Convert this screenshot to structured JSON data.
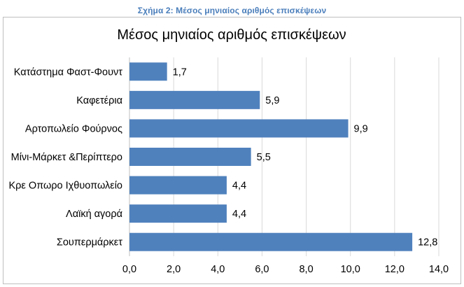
{
  "caption": "Σχήμα 2: Μέσος μηνιαίος αριθμός επισκέψεων",
  "colors": {
    "bar": "#4f81bd",
    "grid": "#d9d9d9",
    "caption": "#4a7ebb"
  },
  "chart_data": {
    "type": "bar",
    "orientation": "horizontal",
    "title": "Μέσος μηνιαίος αριθμός επισκέψεων",
    "xlabel": "",
    "ylabel": "",
    "categories": [
      "Κατάστημα Φαστ-Φουντ",
      "Καφετέρια",
      "Αρτοπωλείο Φούρνος",
      "Μίνι-Μάρκετ &Περίπτερο",
      "Κρε Οπωρο Ιχθυοπωλείο",
      "Λαϊκή αγορά",
      "Σουπερμάρκετ"
    ],
    "values": [
      1.7,
      5.9,
      9.9,
      5.5,
      4.4,
      4.4,
      12.8
    ],
    "data_labels": [
      "1,7",
      "5,9",
      "9,9",
      "5,5",
      "4,4",
      "4,4",
      "12,8"
    ],
    "xlim": [
      0,
      14
    ],
    "xticks": [
      0,
      2,
      4,
      6,
      8,
      10,
      12,
      14
    ],
    "xtick_labels": [
      "0,0",
      "2,0",
      "4,0",
      "6,0",
      "8,0",
      "10,0",
      "12,0",
      "14,0"
    ],
    "grid": true,
    "legend": "none"
  }
}
